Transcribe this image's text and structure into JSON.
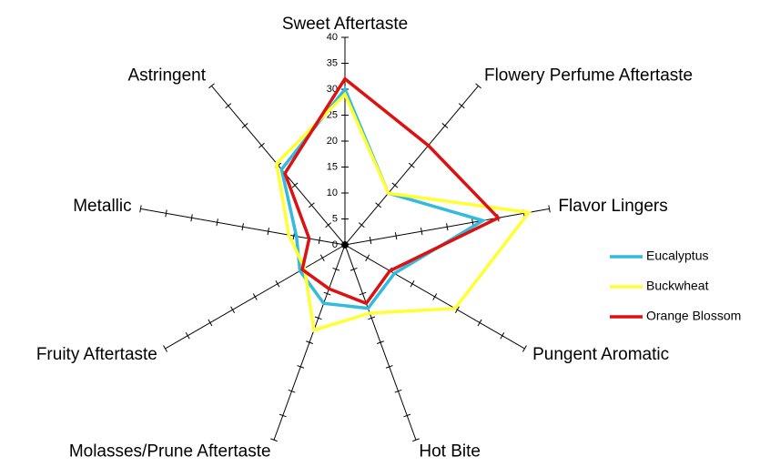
{
  "chart_data": {
    "type": "radar",
    "categories": [
      "Sweet Aftertaste",
      "Flowery Perfume Aftertaste",
      "Flavor Lingers",
      "Pungent Aromatic",
      "Hot Bite",
      "Molasses/Prune Aftertaste",
      "Fruity Aftertaste",
      "Metallic",
      "Astringent"
    ],
    "series": [
      {
        "name": "Eucalyptus",
        "color": "#33bbdd",
        "values": [
          30,
          13,
          27,
          11,
          13,
          12,
          10,
          9.5,
          19
        ]
      },
      {
        "name": "Buckwheat",
        "color": "#ffff33",
        "values": [
          29,
          13,
          36,
          24.5,
          14,
          17.5,
          9,
          11,
          20.5
        ]
      },
      {
        "name": "Orange Blossom",
        "color": "#dd1111",
        "values": [
          32,
          25,
          30,
          10,
          12,
          9,
          9.5,
          7,
          18
        ]
      }
    ],
    "ylim": [
      0,
      40
    ],
    "yticks": [
      0,
      5,
      10,
      15,
      20,
      25,
      30,
      35,
      40
    ],
    "legend": "right"
  }
}
